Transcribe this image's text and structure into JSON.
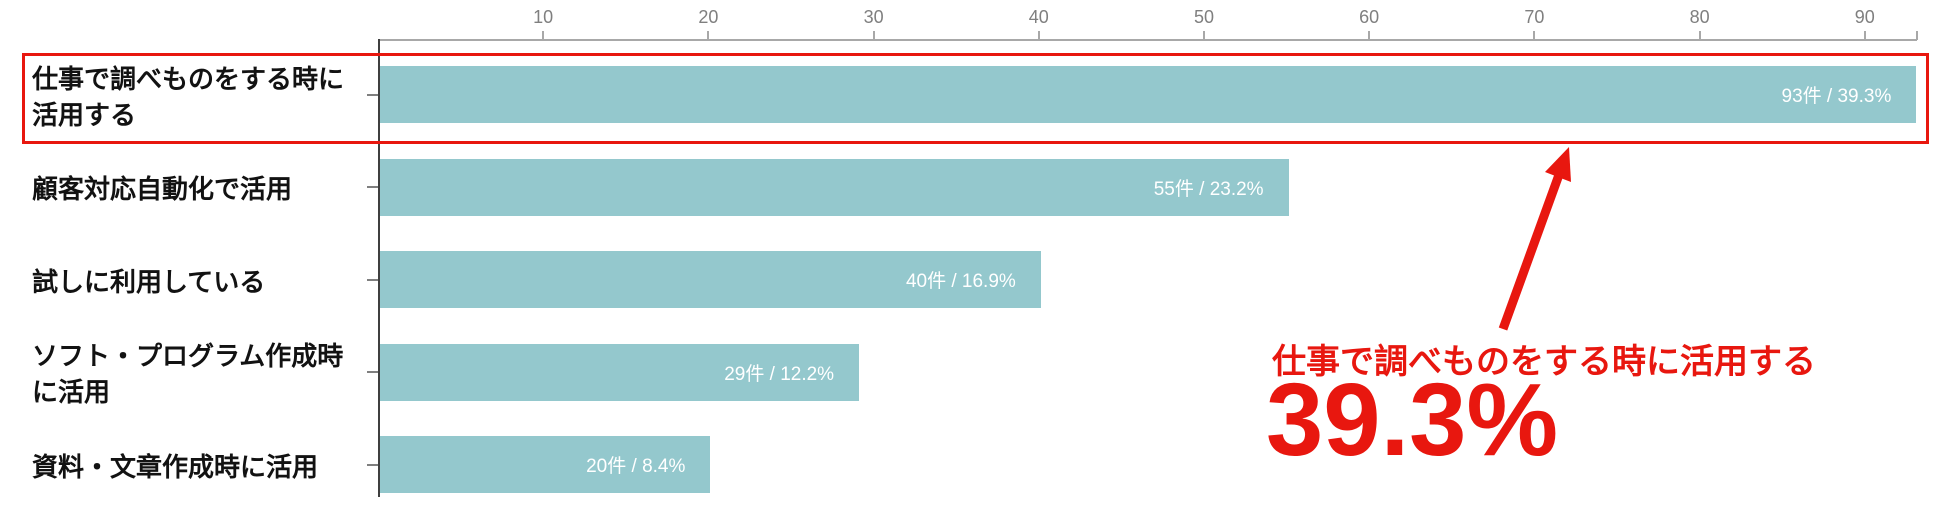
{
  "chart_data": {
    "type": "bar",
    "orientation": "horizontal",
    "title": "",
    "categories": [
      "仕事で調べものをする時に活用する",
      "顧客対応自動化で活用",
      "試しに利用している",
      "ソフト・プログラム作成時に活用",
      "資料・文章作成時に活用"
    ],
    "category_label_lines": [
      [
        "仕事で調べものをする時に",
        "活用する"
      ],
      [
        "顧客対応自動化で活用"
      ],
      [
        "試しに利用している"
      ],
      [
        "ソフト・プログラム作成時",
        "に活用"
      ],
      [
        "資料・文章作成時に活用"
      ]
    ],
    "values": [
      93,
      55,
      40,
      29,
      20
    ],
    "percent_values": [
      39.3,
      23.2,
      16.9,
      12.2,
      8.4
    ],
    "bar_value_labels": [
      "93件 / 39.3%",
      "55件 / 23.2%",
      "40件 / 16.9%",
      "29件 / 12.2%",
      "20件 / 8.4%"
    ],
    "x_ticks": [
      10,
      20,
      30,
      40,
      50,
      60,
      70,
      80,
      90
    ],
    "xlim": [
      0,
      93.2
    ],
    "grid": false,
    "legend": false,
    "highlight_index": 0
  },
  "annotation": {
    "highlight_label": "仕事で調べものをする時に活用する",
    "highlight_value": "39.3%"
  },
  "colors": {
    "bar": "#94c8cd",
    "accent_red": "#e8170f",
    "x_axis_line": "#a8a8a8",
    "y_axis_line": "#3f3f3f",
    "tick_label": "#7f7f7f",
    "category_label": "#121212",
    "bar_value_label": "#ffffff"
  }
}
